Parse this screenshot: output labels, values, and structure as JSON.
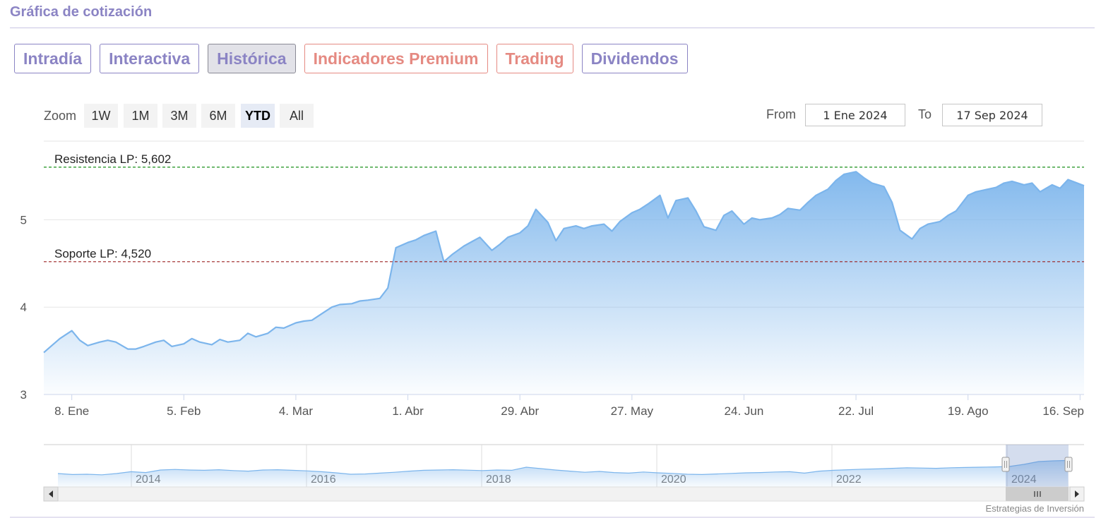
{
  "header": {
    "title": "Gráfica de cotización"
  },
  "tabs": [
    {
      "label": "Intradía",
      "active": false,
      "premium": false
    },
    {
      "label": "Interactiva",
      "active": false,
      "premium": false
    },
    {
      "label": "Histórica",
      "active": true,
      "premium": false
    },
    {
      "label": "Indicadores Premium",
      "active": false,
      "premium": true
    },
    {
      "label": "Trading",
      "active": false,
      "premium": true
    },
    {
      "label": "Dividendos",
      "active": false,
      "premium": false
    }
  ],
  "range_selector": {
    "zoom_label": "Zoom",
    "buttons": [
      "1W",
      "1M",
      "3M",
      "6M",
      "YTD",
      "All"
    ],
    "selected": "YTD",
    "from_label": "From",
    "from_value": "1 Ene 2024",
    "to_label": "To",
    "to_value": "17 Sep 2024"
  },
  "colors": {
    "series": "#7cb5ec",
    "resistance": "#1a8f1a",
    "support": "#9b2222",
    "accent": "#8b84c4",
    "premium": "#e58a82"
  },
  "chart_data": {
    "type": "area",
    "x_start": "2024-01-01",
    "x_end": "2024-09-17",
    "x_tick_labels": [
      "8. Ene",
      "5. Feb",
      "4. Mar",
      "1. Abr",
      "29. Abr",
      "27. May",
      "24. Jun",
      "22. Jul",
      "19. Ago",
      "16. Sep"
    ],
    "y_tick_labels": [
      "3",
      "4",
      "5"
    ],
    "ylim": [
      3,
      5.9
    ],
    "grid": true,
    "plot_lines": [
      {
        "label": "Resistencia LP: 5,602",
        "value": 5.602,
        "style": "dashed",
        "color": "#1a8f1a"
      },
      {
        "label": "Soporte LP: 4,520",
        "value": 4.52,
        "style": "dashed",
        "color": "#9b2222"
      }
    ],
    "series": [
      {
        "points": [
          [
            "2024-01-01",
            3.48
          ],
          [
            "2024-01-03",
            3.56
          ],
          [
            "2024-01-05",
            3.64
          ],
          [
            "2024-01-08",
            3.73
          ],
          [
            "2024-01-10",
            3.62
          ],
          [
            "2024-01-12",
            3.56
          ],
          [
            "2024-01-15",
            3.6
          ],
          [
            "2024-01-17",
            3.62
          ],
          [
            "2024-01-19",
            3.6
          ],
          [
            "2024-01-22",
            3.52
          ],
          [
            "2024-01-24",
            3.52
          ],
          [
            "2024-01-26",
            3.55
          ],
          [
            "2024-01-29",
            3.6
          ],
          [
            "2024-01-31",
            3.62
          ],
          [
            "2024-02-02",
            3.55
          ],
          [
            "2024-02-05",
            3.58
          ],
          [
            "2024-02-07",
            3.64
          ],
          [
            "2024-02-09",
            3.6
          ],
          [
            "2024-02-12",
            3.57
          ],
          [
            "2024-02-14",
            3.63
          ],
          [
            "2024-02-16",
            3.6
          ],
          [
            "2024-02-19",
            3.62
          ],
          [
            "2024-02-21",
            3.7
          ],
          [
            "2024-02-23",
            3.66
          ],
          [
            "2024-02-26",
            3.7
          ],
          [
            "2024-02-28",
            3.77
          ],
          [
            "2024-03-01",
            3.76
          ],
          [
            "2024-03-04",
            3.82
          ],
          [
            "2024-03-06",
            3.84
          ],
          [
            "2024-03-08",
            3.85
          ],
          [
            "2024-03-11",
            3.94
          ],
          [
            "2024-03-13",
            4.0
          ],
          [
            "2024-03-15",
            4.03
          ],
          [
            "2024-03-18",
            4.04
          ],
          [
            "2024-03-20",
            4.07
          ],
          [
            "2024-03-22",
            4.08
          ],
          [
            "2024-03-25",
            4.1
          ],
          [
            "2024-03-27",
            4.22
          ],
          [
            "2024-03-29",
            4.68
          ],
          [
            "2024-04-01",
            4.74
          ],
          [
            "2024-04-03",
            4.77
          ],
          [
            "2024-04-05",
            4.82
          ],
          [
            "2024-04-08",
            4.87
          ],
          [
            "2024-04-10",
            4.52
          ],
          [
            "2024-04-12",
            4.6
          ],
          [
            "2024-04-15",
            4.7
          ],
          [
            "2024-04-17",
            4.75
          ],
          [
            "2024-04-19",
            4.8
          ],
          [
            "2024-04-22",
            4.65
          ],
          [
            "2024-04-24",
            4.72
          ],
          [
            "2024-04-26",
            4.8
          ],
          [
            "2024-04-29",
            4.85
          ],
          [
            "2024-05-01",
            4.93
          ],
          [
            "2024-05-03",
            5.12
          ],
          [
            "2024-05-06",
            4.97
          ],
          [
            "2024-05-08",
            4.76
          ],
          [
            "2024-05-10",
            4.9
          ],
          [
            "2024-05-13",
            4.93
          ],
          [
            "2024-05-15",
            4.9
          ],
          [
            "2024-05-17",
            4.93
          ],
          [
            "2024-05-20",
            4.95
          ],
          [
            "2024-05-22",
            4.87
          ],
          [
            "2024-05-24",
            4.98
          ],
          [
            "2024-05-27",
            5.08
          ],
          [
            "2024-05-29",
            5.12
          ],
          [
            "2024-05-31",
            5.18
          ],
          [
            "2024-06-03",
            5.28
          ],
          [
            "2024-06-05",
            5.02
          ],
          [
            "2024-06-07",
            5.22
          ],
          [
            "2024-06-10",
            5.25
          ],
          [
            "2024-06-12",
            5.1
          ],
          [
            "2024-06-14",
            4.92
          ],
          [
            "2024-06-17",
            4.88
          ],
          [
            "2024-06-19",
            5.05
          ],
          [
            "2024-06-21",
            5.1
          ],
          [
            "2024-06-24",
            4.95
          ],
          [
            "2024-06-26",
            5.02
          ],
          [
            "2024-06-28",
            5.0
          ],
          [
            "2024-07-01",
            5.02
          ],
          [
            "2024-07-03",
            5.06
          ],
          [
            "2024-07-05",
            5.13
          ],
          [
            "2024-07-08",
            5.11
          ],
          [
            "2024-07-10",
            5.2
          ],
          [
            "2024-07-12",
            5.28
          ],
          [
            "2024-07-15",
            5.35
          ],
          [
            "2024-07-17",
            5.45
          ],
          [
            "2024-07-19",
            5.52
          ],
          [
            "2024-07-22",
            5.55
          ],
          [
            "2024-07-24",
            5.48
          ],
          [
            "2024-07-26",
            5.42
          ],
          [
            "2024-07-29",
            5.38
          ],
          [
            "2024-07-31",
            5.2
          ],
          [
            "2024-08-02",
            4.88
          ],
          [
            "2024-08-05",
            4.78
          ],
          [
            "2024-08-07",
            4.9
          ],
          [
            "2024-08-09",
            4.95
          ],
          [
            "2024-08-12",
            4.98
          ],
          [
            "2024-08-14",
            5.05
          ],
          [
            "2024-08-16",
            5.1
          ],
          [
            "2024-08-19",
            5.28
          ],
          [
            "2024-08-21",
            5.32
          ],
          [
            "2024-08-23",
            5.34
          ],
          [
            "2024-08-26",
            5.37
          ],
          [
            "2024-08-28",
            5.42
          ],
          [
            "2024-08-30",
            5.44
          ],
          [
            "2024-09-02",
            5.4
          ],
          [
            "2024-09-04",
            5.42
          ],
          [
            "2024-09-06",
            5.32
          ],
          [
            "2024-09-09",
            5.4
          ],
          [
            "2024-09-11",
            5.36
          ],
          [
            "2024-09-13",
            5.46
          ],
          [
            "2024-09-17",
            5.39
          ]
        ]
      }
    ]
  },
  "navigator": {
    "year_labels": [
      "2014",
      "2016",
      "2018",
      "2020",
      "2022",
      "2024"
    ],
    "credits": "Estrategias de Inversión"
  }
}
